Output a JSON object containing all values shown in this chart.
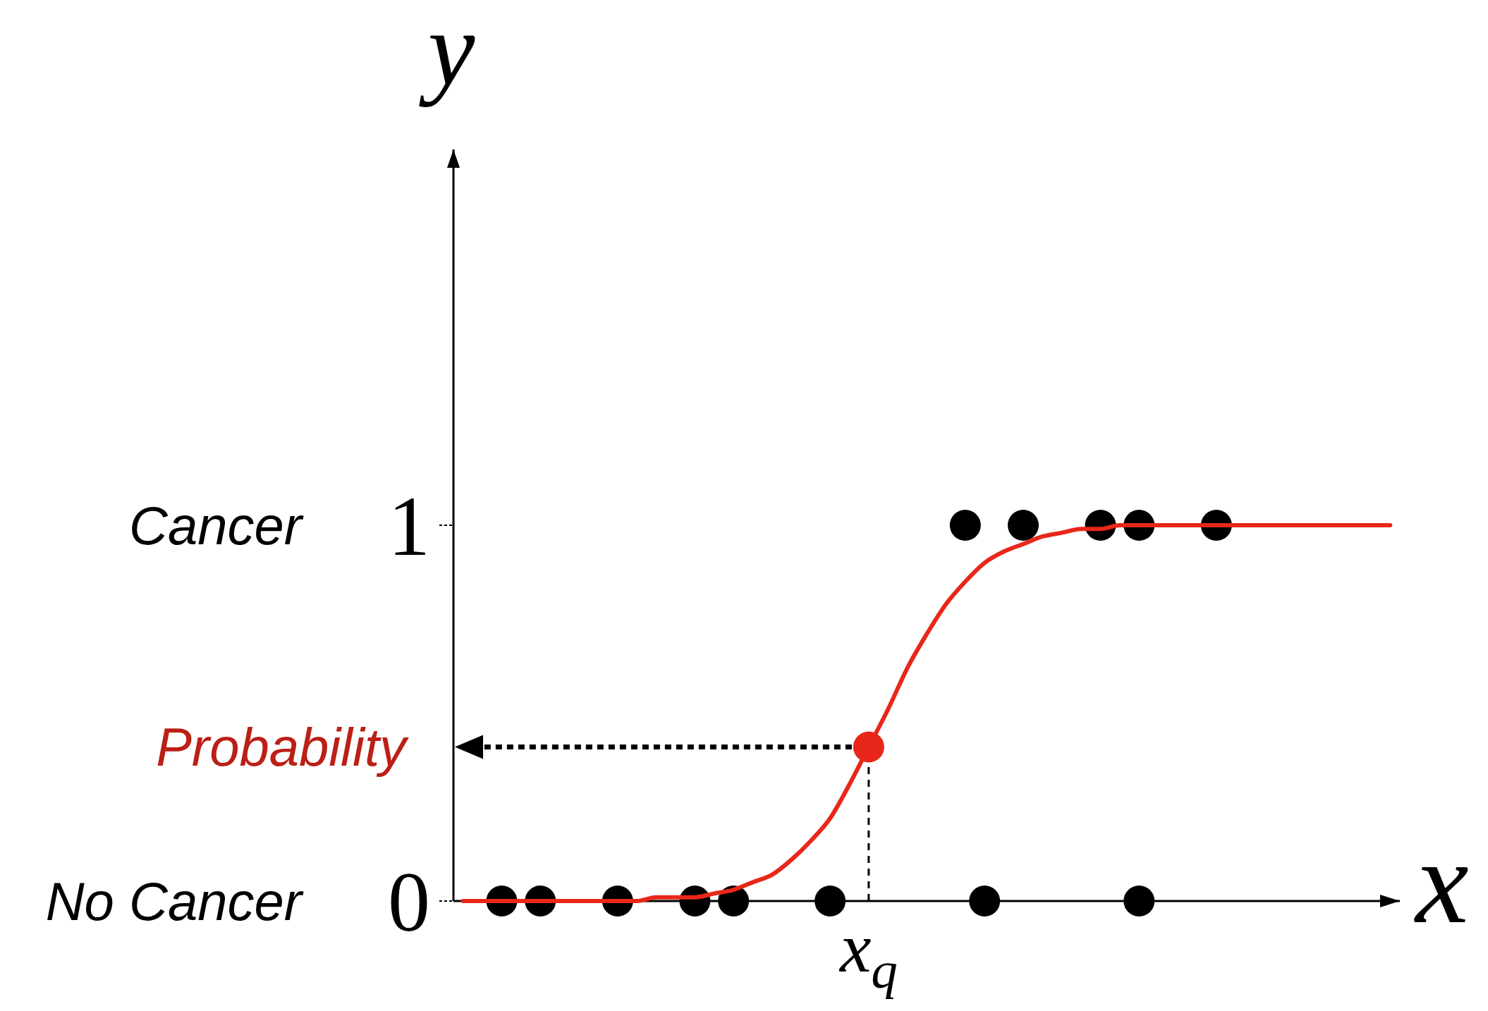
{
  "chart_data": {
    "type": "scatter",
    "xlabel": "x",
    "ylabel": "y",
    "categories": [
      null,
      null,
      null,
      null,
      null,
      null,
      null,
      null,
      null,
      null,
      null,
      null,
      null,
      null,
      null,
      null,
      null,
      null,
      null,
      null,
      null,
      "x$_{q}$",
      null,
      null,
      null,
      null,
      null,
      null,
      null,
      null,
      null,
      null,
      null,
      null,
      null,
      null,
      null,
      null,
      null,
      null,
      null,
      null,
      null,
      null,
      null,
      null,
      null,
      null,
      null
    ],
    "ylim": [
      0,
      2
    ],
    "yticks": [
      0,
      1
    ],
    "series": [
      {
        "color": "#000000",
        "values": [
          null,
          null,
          0,
          null,
          0,
          null,
          null,
          null,
          0,
          null,
          null,
          null,
          0,
          null,
          0,
          null,
          null,
          null,
          null,
          0,
          null,
          null,
          null,
          null,
          null,
          null,
          null,
          0,
          null,
          null,
          null,
          null,
          null,
          null,
          null,
          0,
          null,
          null,
          null,
          null,
          null,
          null,
          null,
          null,
          null,
          null,
          null,
          null,
          null
        ]
      },
      {
        "color": "#000000",
        "values": [
          null,
          null,
          null,
          null,
          null,
          null,
          null,
          null,
          null,
          null,
          null,
          null,
          null,
          null,
          null,
          null,
          null,
          null,
          null,
          null,
          null,
          null,
          null,
          null,
          null,
          null,
          1,
          null,
          null,
          1,
          null,
          null,
          null,
          1,
          null,
          1,
          null,
          null,
          null,
          1,
          null,
          null,
          null,
          null,
          null,
          null,
          null,
          null,
          null
        ]
      },
      {
        "type": "line",
        "color": "#e8271a",
        "marker": "none",
        "values": [
          0,
          0,
          0,
          0,
          0,
          0,
          0,
          0,
          0,
          0,
          0.01,
          0.01,
          0.01,
          0.02,
          0.03,
          0.05,
          0.07,
          0.11,
          0.16,
          0.22,
          0.31,
          0.41,
          0.51,
          0.62,
          0.71,
          0.79,
          0.85,
          0.9,
          0.93,
          0.95,
          0.97,
          0.98,
          0.99,
          0.99,
          1,
          1,
          1,
          1,
          1,
          1,
          1,
          1,
          1,
          1,
          1,
          1,
          1,
          1,
          1
        ]
      },
      {
        "color": "#e8271a",
        "values": [
          null,
          null,
          null,
          null,
          null,
          null,
          null,
          null,
          null,
          null,
          null,
          null,
          null,
          null,
          null,
          null,
          null,
          null,
          null,
          null,
          null,
          0.41,
          null,
          null,
          null,
          null,
          null,
          null,
          null,
          null,
          null,
          null,
          null,
          null,
          null,
          null,
          null,
          null,
          null,
          null,
          null,
          null,
          null,
          null,
          null,
          null,
          null,
          null,
          null
        ]
      }
    ],
    "annotations": [
      "Cancer",
      "No Cancer",
      "Probability"
    ],
    "marker": "circle"
  }
}
